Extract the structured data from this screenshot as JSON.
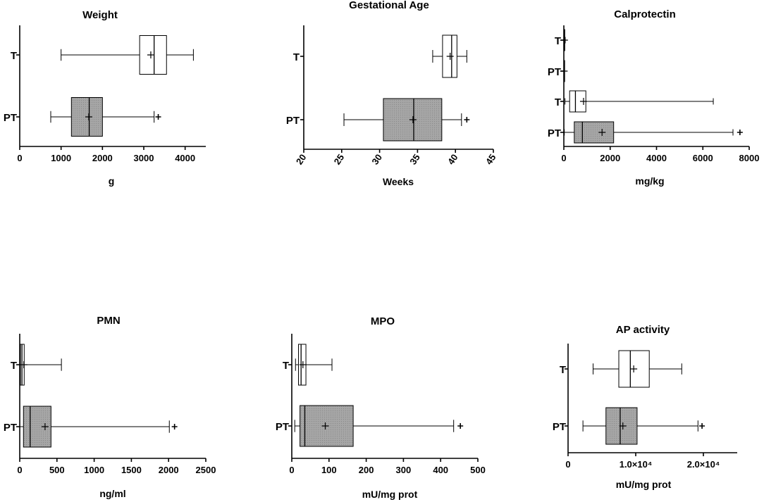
{
  "colors": {
    "white_box": "#ffffff",
    "grey_box": "#a0a0a0",
    "stroke": "#000000",
    "background": "#ffffff"
  },
  "chart_data": [
    {
      "type": "boxplot",
      "title": "Weight",
      "xlabel": "g",
      "xlim": [
        0,
        4500
      ],
      "ticks": [
        0,
        1000,
        2000,
        3000,
        4000
      ],
      "tick_labels": [
        "0",
        "1000",
        "2000",
        "3000",
        "4000"
      ],
      "series": [
        {
          "name": "T",
          "fill": "white",
          "min": 1000,
          "q1": 2900,
          "median": 3250,
          "q3": 3550,
          "max": 4200,
          "mean": 3170,
          "outliers": []
        },
        {
          "name": "PT",
          "fill": "grey",
          "min": 750,
          "q1": 1250,
          "median": 1680,
          "q3": 2000,
          "max": 3250,
          "mean": 1670,
          "outliers": [
            3350
          ]
        }
      ]
    },
    {
      "type": "boxplot",
      "title": "Gestational Age",
      "xlabel": "Weeks",
      "xlim": [
        20,
        45
      ],
      "ticks_rotated": true,
      "ticks": [
        20,
        25,
        30,
        35,
        40,
        45
      ],
      "tick_labels": [
        "20",
        "25",
        "30",
        "35",
        "40",
        "45"
      ],
      "series": [
        {
          "name": "T",
          "fill": "white",
          "min": 37,
          "q1": 38.3,
          "median": 39.5,
          "q3": 40.2,
          "max": 41.5,
          "mean": 39.3,
          "outliers": []
        },
        {
          "name": "PT",
          "fill": "grey",
          "min": 25.3,
          "q1": 30.5,
          "median": 34.5,
          "q3": 38.2,
          "max": 40.8,
          "mean": 34.4,
          "outliers": [
            41.5
          ]
        }
      ]
    },
    {
      "type": "boxplot",
      "title": "Calprotectin",
      "xlabel": "mg/kg",
      "xlim": [
        0,
        8000
      ],
      "ticks": [
        0,
        2000,
        4000,
        6000,
        8000
      ],
      "tick_labels": [
        "0",
        "2000",
        "4000",
        "6000",
        "8000"
      ],
      "series": [
        {
          "name": "T",
          "fill": "white",
          "min": 0,
          "q1": 10,
          "median": 20,
          "q3": 40,
          "max": 60,
          "mean": 25,
          "outliers": []
        },
        {
          "name": "PT",
          "fill": "white",
          "min": 0,
          "q1": 5,
          "median": 10,
          "q3": 20,
          "max": 30,
          "mean": 12,
          "outliers": []
        },
        {
          "name": "T",
          "fill": "white",
          "min": 50,
          "q1": 250,
          "median": 500,
          "q3": 950,
          "max": 6450,
          "mean": 850,
          "outliers": []
        },
        {
          "name": "PT",
          "fill": "grey",
          "min": 20,
          "q1": 450,
          "median": 800,
          "q3": 2150,
          "max": 7300,
          "mean": 1650,
          "outliers": [
            7600
          ]
        }
      ]
    },
    {
      "type": "boxplot",
      "title": "PMN",
      "xlabel": "ng/ml",
      "xlim": [
        0,
        2500
      ],
      "ticks": [
        0,
        500,
        1000,
        1500,
        2000,
        2500
      ],
      "tick_labels": [
        "0",
        "500",
        "1000",
        "1500",
        "2000",
        "2500"
      ],
      "series": [
        {
          "name": "T",
          "fill": "white",
          "min": 0,
          "q1": 10,
          "median": 30,
          "q3": 60,
          "max": 560,
          "mean": 55,
          "outliers": []
        },
        {
          "name": "PT",
          "fill": "grey",
          "min": 0,
          "q1": 50,
          "median": 140,
          "q3": 420,
          "max": 2010,
          "mean": 340,
          "outliers": [
            2080
          ]
        }
      ]
    },
    {
      "type": "boxplot",
      "title": "MPO",
      "xlabel": "mU/mg prot",
      "xlim": [
        0,
        500
      ],
      "ticks": [
        0,
        100,
        200,
        300,
        400,
        500
      ],
      "tick_labels": [
        "0",
        "100",
        "200",
        "300",
        "400",
        "500"
      ],
      "series": [
        {
          "name": "T",
          "fill": "white",
          "min": 10,
          "q1": 18,
          "median": 25,
          "q3": 38,
          "max": 108,
          "mean": 30,
          "outliers": []
        },
        {
          "name": "PT",
          "fill": "grey",
          "min": 8,
          "q1": 22,
          "median": 35,
          "q3": 165,
          "max": 435,
          "mean": 90,
          "outliers": [
            453
          ]
        }
      ]
    },
    {
      "type": "boxplot",
      "title": "AP activity",
      "xlabel": "mU/mg prot",
      "xlim": [
        0,
        25000
      ],
      "ticks": [
        0,
        10000,
        20000
      ],
      "tick_labels": [
        "0",
        "1.0×10⁴",
        "2.0×10⁴"
      ],
      "series": [
        {
          "name": "T",
          "fill": "white",
          "min": 3700,
          "q1": 7500,
          "median": 9200,
          "q3": 12000,
          "max": 16800,
          "mean": 9700,
          "outliers": []
        },
        {
          "name": "PT",
          "fill": "grey",
          "min": 2200,
          "q1": 5600,
          "median": 7700,
          "q3": 10200,
          "max": 19200,
          "mean": 8100,
          "outliers": [
            19800
          ]
        }
      ]
    }
  ]
}
